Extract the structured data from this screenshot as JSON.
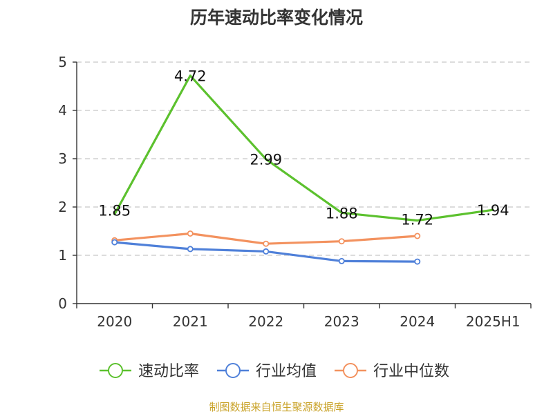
{
  "colors": {
    "series_0": "#5cc12e",
    "series_1": "#4f80d9",
    "series_2": "#f3925f",
    "grid": "#c8c8c8",
    "axis": "#333333",
    "source": "#c9a227"
  },
  "chart_data": {
    "type": "line",
    "title": "历年速动比率变化情况",
    "source": "制图数据来自恒生聚源数据库",
    "categories": [
      "2020",
      "2021",
      "2022",
      "2023",
      "2024",
      "2025H1"
    ],
    "y_ticks": [
      "0",
      "1",
      "2",
      "3",
      "4",
      "5"
    ],
    "ylim": [
      0,
      5
    ],
    "grid": true,
    "legend_position": "bottom",
    "series": [
      {
        "name": "速动比率",
        "values": [
          1.85,
          4.72,
          2.99,
          1.88,
          1.72,
          1.94
        ],
        "labels": [
          "1.85",
          "4.72",
          "2.99",
          "1.88",
          "1.72",
          "1.94"
        ]
      },
      {
        "name": "行业均值",
        "values": [
          1.27,
          1.13,
          1.08,
          0.88,
          0.87,
          null
        ],
        "labels": []
      },
      {
        "name": "行业中位数",
        "values": [
          1.31,
          1.45,
          1.24,
          1.29,
          1.4,
          null
        ],
        "labels": []
      }
    ]
  }
}
